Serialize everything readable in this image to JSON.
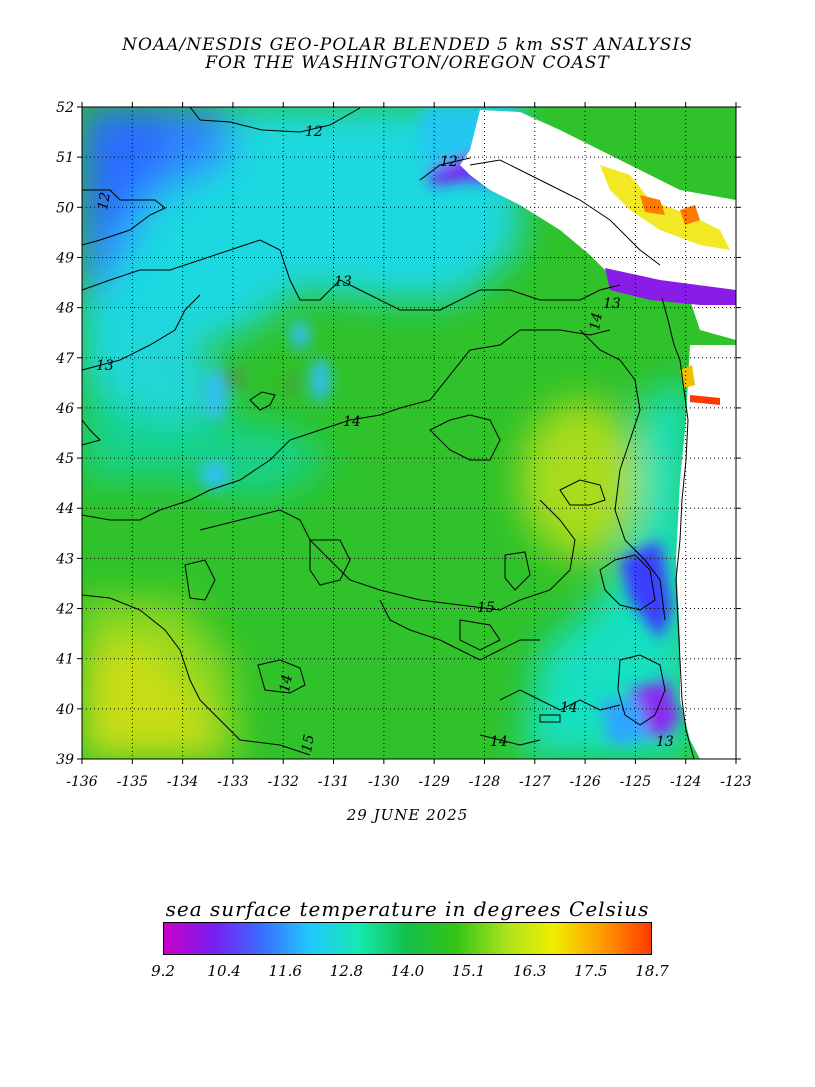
{
  "header": {
    "title_line1": "NOAA/NESDIS GEO-POLAR BLENDED 5 km SST ANALYSIS",
    "title_line2": "FOR THE WASHINGTON/OREGON COAST"
  },
  "map": {
    "date": "29 JUNE 2025",
    "lat_ticks": [
      "52",
      "51",
      "50",
      "49",
      "48",
      "47",
      "46",
      "45",
      "44",
      "43",
      "42",
      "41",
      "40",
      "39"
    ],
    "lon_ticks": [
      "-136",
      "-135",
      "-134",
      "-133",
      "-132",
      "-131",
      "-130",
      "-129",
      "-128",
      "-127",
      "-126",
      "-125",
      "-124",
      "-123"
    ],
    "contour_labels": [
      {
        "text": "12"
      },
      {
        "text": "12"
      },
      {
        "text": "12"
      },
      {
        "text": "13"
      },
      {
        "text": "13"
      },
      {
        "text": "13"
      },
      {
        "text": "13"
      },
      {
        "text": "14"
      },
      {
        "text": "14"
      },
      {
        "text": "14"
      },
      {
        "text": "14"
      },
      {
        "text": "14"
      },
      {
        "text": "15"
      },
      {
        "text": "15"
      }
    ]
  },
  "legend": {
    "title": "sea surface temperature in degrees Celsius",
    "labels": [
      "9.2",
      "10.4",
      "11.6",
      "12.8",
      "14.0",
      "15.1",
      "16.3",
      "17.5",
      "18.7"
    ],
    "colors": [
      "#c800c8",
      "#7a1cf0",
      "#3a6cff",
      "#21c8ff",
      "#16e8b0",
      "#12c04a",
      "#34c416",
      "#a8e21c",
      "#f2ee00",
      "#ff9a00",
      "#ff3a00"
    ]
  }
}
